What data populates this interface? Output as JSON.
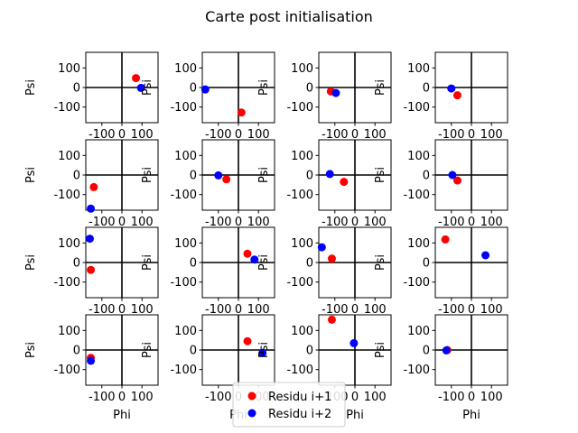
{
  "figure": {
    "title": "Carte post initialisation"
  },
  "legend": {
    "placement": "bottom-center",
    "entries": [
      {
        "label": "Residu i+1",
        "color": "#ff0000"
      },
      {
        "label": "Residu i+2",
        "color": "#0000ff"
      }
    ]
  },
  "chart_data": {
    "type": "scatter",
    "layout": "grid-4x4",
    "xlabel": "Phi",
    "ylabel": "Psi",
    "xlim": [
      -180,
      180
    ],
    "ylim": [
      -180,
      180
    ],
    "xticks": [
      -100,
      0,
      100
    ],
    "xtick_labels": [
      "-100",
      "0",
      "100"
    ],
    "yticks": [
      -100,
      0,
      100
    ],
    "ytick_labels": [
      "-100",
      "0",
      "100"
    ],
    "reference_lines": {
      "x": 0,
      "y": 0
    },
    "series_names": [
      "Residu i+1",
      "Residu i+2"
    ],
    "colors": [
      "#ff0000",
      "#0000ff"
    ],
    "subplots": [
      {
        "points": [
          [
            70,
            48
          ],
          [
            95,
            -2
          ]
        ]
      },
      {
        "points": [
          [
            15,
            -128
          ],
          [
            -165,
            -10
          ]
        ]
      },
      {
        "points": [
          [
            -120,
            -20
          ],
          [
            -95,
            -28
          ]
        ]
      },
      {
        "points": [
          [
            -70,
            -40
          ],
          [
            -100,
            -5
          ]
        ]
      },
      {
        "points": [
          [
            -140,
            -62
          ],
          [
            -155,
            -172
          ]
        ]
      },
      {
        "points": [
          [
            -60,
            -22
          ],
          [
            -100,
            -2
          ]
        ]
      },
      {
        "points": [
          [
            -55,
            -35
          ],
          [
            -125,
            5
          ]
        ]
      },
      {
        "points": [
          [
            -70,
            -28
          ],
          [
            -95,
            0
          ]
        ]
      },
      {
        "points": [
          [
            -155,
            -38
          ],
          [
            -160,
            122
          ]
        ]
      },
      {
        "points": [
          [
            45,
            45
          ],
          [
            80,
            15
          ]
        ]
      },
      {
        "points": [
          [
            -115,
            20
          ],
          [
            -165,
            78
          ]
        ]
      },
      {
        "points": [
          [
            -130,
            118
          ],
          [
            70,
            37
          ]
        ]
      },
      {
        "points": [
          [
            -155,
            -40
          ],
          [
            -155,
            -55
          ]
        ]
      },
      {
        "points": [
          [
            45,
            45
          ],
          [
            120,
            -15
          ]
        ]
      },
      {
        "points": [
          [
            -115,
            155
          ],
          [
            -5,
            35
          ]
        ]
      },
      {
        "points": [
          [
            -120,
            0
          ],
          [
            -125,
            -2
          ]
        ]
      }
    ]
  }
}
